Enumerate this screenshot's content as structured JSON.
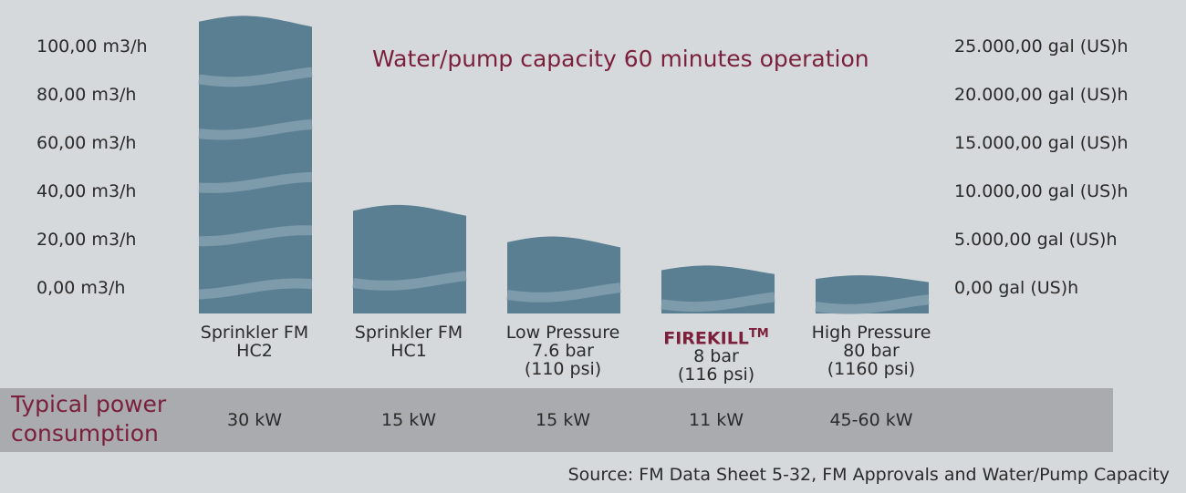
{
  "chart_data": {
    "type": "bar",
    "title": "Water/pump capacity 60 minutes operation",
    "categories": [
      {
        "lines": [
          "Sprinkler FM",
          "HC2"
        ]
      },
      {
        "lines": [
          "Sprinkler FM",
          "HC1"
        ]
      },
      {
        "lines": [
          "Low Pressure",
          "7.6 bar",
          "(110 psi)"
        ]
      },
      {
        "lines": [
          "",
          "8 bar",
          "(116 psi)"
        ],
        "brand": "FIREKILL",
        "brand_mark": "TM"
      },
      {
        "lines": [
          "High Pressure",
          "80 bar",
          "(1160 psi)"
        ]
      }
    ],
    "values": [
      113,
      35,
      22,
      10,
      6
    ],
    "ylim": [
      0,
      100
    ],
    "left_axis_ticks": [
      "100,00 m3/h",
      "80,00 m3/h",
      "60,00 m3/h",
      "40,00 m3/h",
      "20,00 m3/h",
      "0,00 m3/h"
    ],
    "right_axis_ticks": [
      "25.000,00 gal (US)h",
      "20.000,00 gal (US)h",
      "15.000,00 gal (US)h",
      "10.000,00 gal (US)h",
      "5.000,00 gal (US)h",
      "0,00 gal (US)h"
    ],
    "bar_color": "#5a7f92",
    "wave_color": "#8aa4b2"
  },
  "power": {
    "label_lines": [
      "Typical power",
      "consumption"
    ],
    "values": [
      "30 kW",
      "15 kW",
      "15 kW",
      "11 kW",
      "45-60 kW"
    ]
  },
  "source": "Source: FM Data Sheet 5-32, FM Approvals and Water/Pump Capacity"
}
